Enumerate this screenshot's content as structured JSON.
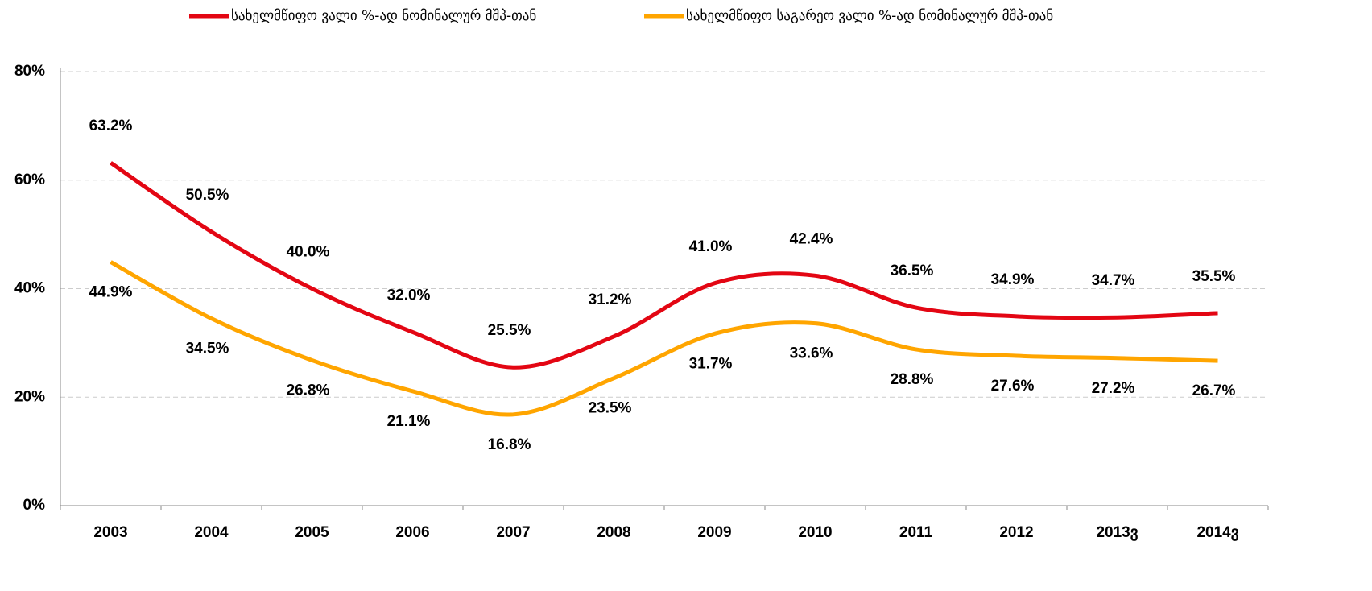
{
  "chart_data": {
    "type": "line",
    "categories": [
      "2003",
      "2004",
      "2005",
      "2006",
      "2007",
      "2008",
      "2009",
      "2010",
      "2011",
      "2012",
      "2013ვ",
      "2014ვ"
    ],
    "series": [
      {
        "name": "სახელმწიფო ვალი %-ად ნომინალურ მშპ-თან",
        "color": "#e30613",
        "values": [
          63.2,
          50.5,
          40.0,
          32.0,
          25.5,
          31.2,
          41.0,
          42.4,
          36.5,
          34.9,
          34.7,
          35.5
        ],
        "value_labels": [
          "63.2%",
          "50.5%",
          "40.0%",
          "32.0%",
          "25.5%",
          "31.2%",
          "41.0%",
          "42.4%",
          "36.5%",
          "34.9%",
          "34.7%",
          "35.5%"
        ]
      },
      {
        "name": "სახელმწიფო საგარეო ვალი %-ად ნომინალურ მშპ-თან",
        "color": "#ffa500",
        "values": [
          44.9,
          34.5,
          26.8,
          21.1,
          16.8,
          23.5,
          31.7,
          33.6,
          28.8,
          27.6,
          27.2,
          26.7
        ],
        "value_labels": [
          "44.9%",
          "34.5%",
          "26.8%",
          "21.1%",
          "16.8%",
          "23.5%",
          "31.7%",
          "33.6%",
          "28.8%",
          "27.6%",
          "27.2%",
          "26.7%"
        ]
      }
    ],
    "ylim": [
      0,
      80
    ],
    "yticks": [
      {
        "value": 0,
        "label": "0%"
      },
      {
        "value": 20,
        "label": "20%"
      },
      {
        "value": 40,
        "label": "40%"
      },
      {
        "value": 60,
        "label": "60%"
      },
      {
        "value": 80,
        "label": "80%"
      }
    ],
    "grid": true,
    "smooth": true,
    "legend": "top"
  }
}
